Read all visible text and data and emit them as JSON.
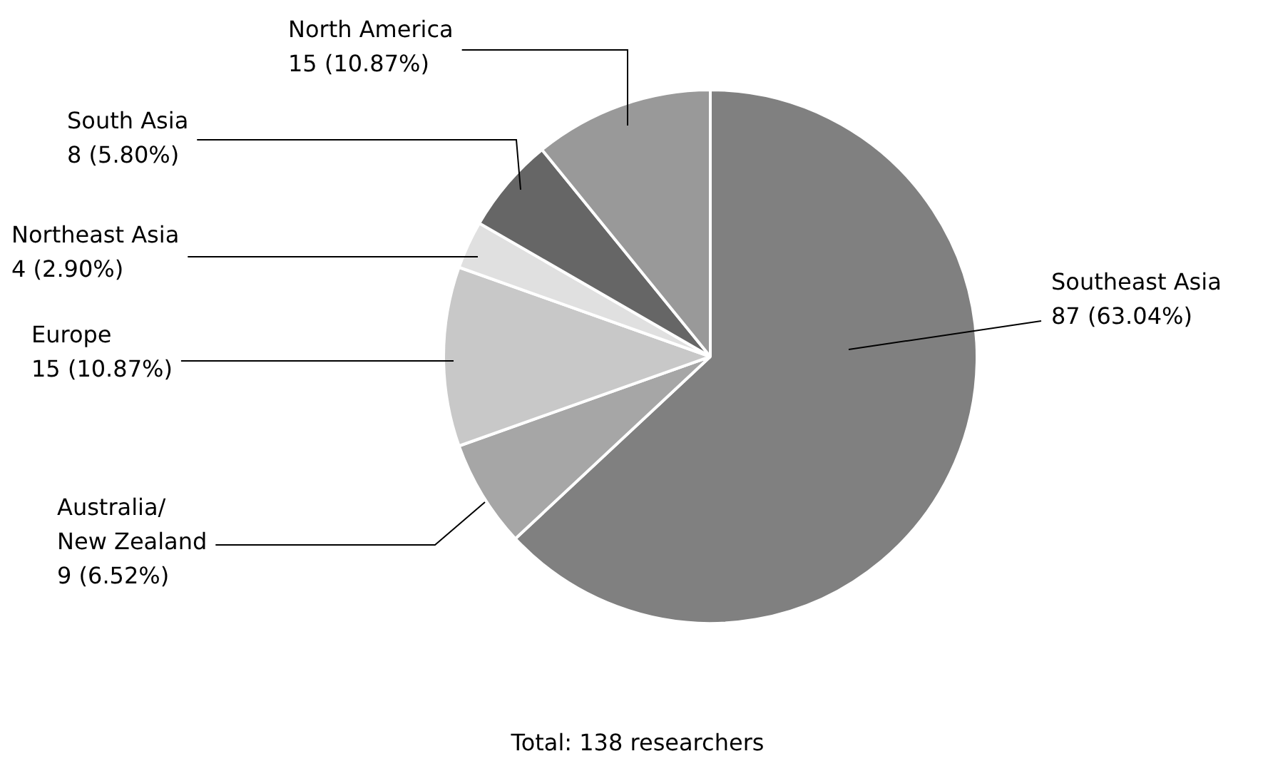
{
  "chart_data": {
    "type": "pie",
    "categories": [
      "Southeast Asia",
      "Australia/New Zealand",
      "Europe",
      "Northeast Asia",
      "South Asia",
      "North America"
    ],
    "values": [
      87,
      9,
      15,
      4,
      8,
      15
    ],
    "value_labels": [
      "87 (63.04%)",
      "9 (6.52%)",
      "15 (10.87%)",
      "4 (2.90%)",
      "8 (5.80%)",
      "15 (10.87%)"
    ],
    "colors": [
      "#808080",
      "#a6a6a6",
      "#c8c8c8",
      "#e0e0e0",
      "#666666",
      "#999999"
    ],
    "legend": false,
    "annotations": [
      "Total: 138 researchers"
    ]
  }
}
